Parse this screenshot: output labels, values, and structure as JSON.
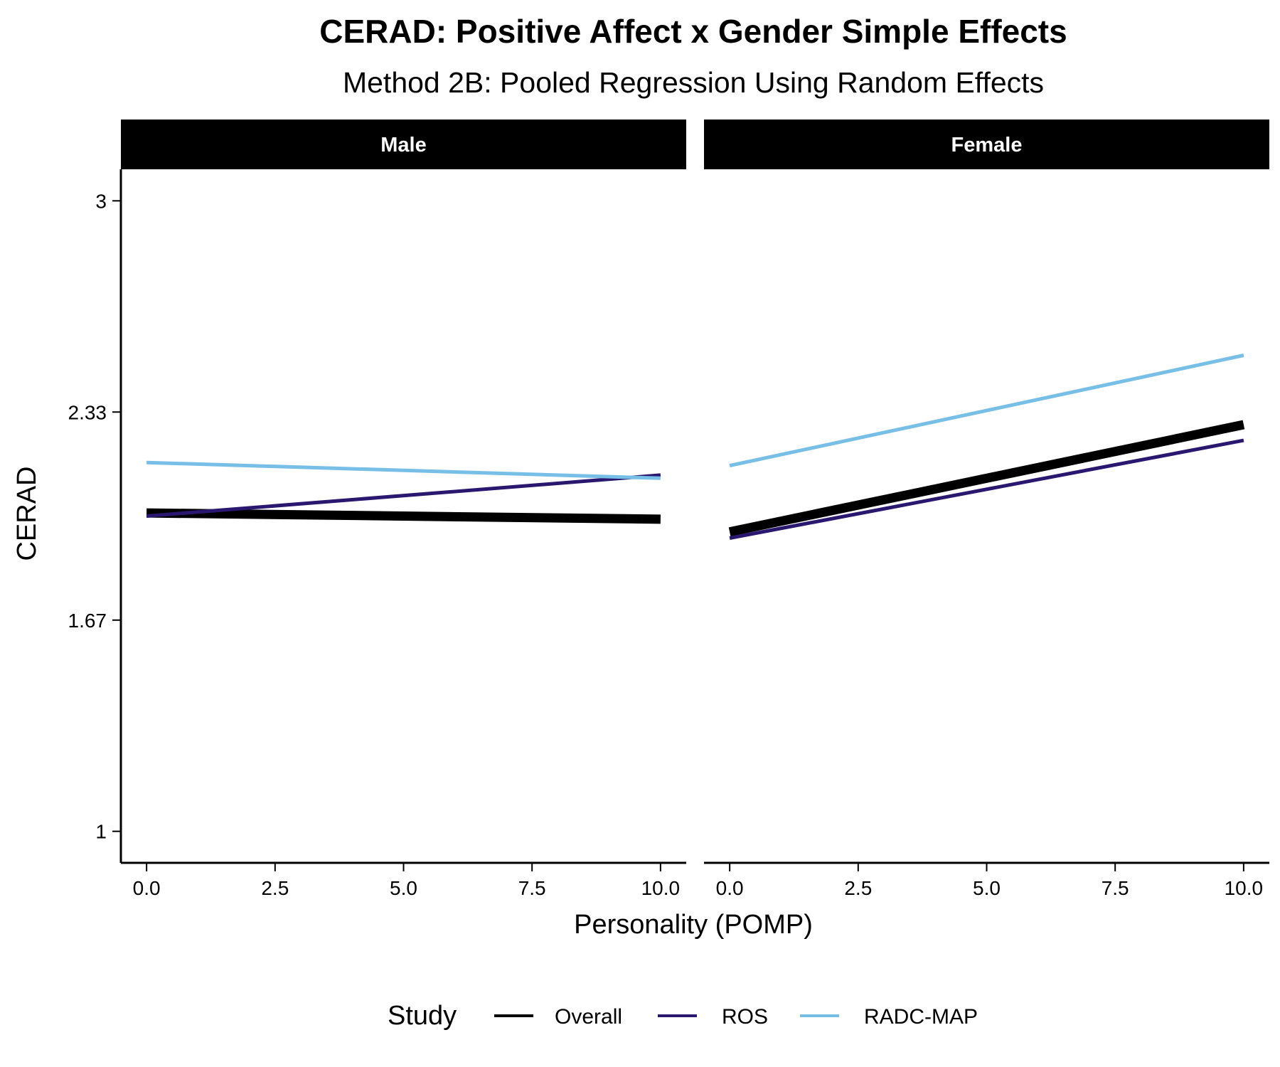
{
  "chart_data": {
    "type": "line",
    "title": "CERAD: Positive Affect x Gender Simple Effects",
    "subtitle": "Method 2B: Pooled Regression Using Random Effects",
    "xlabel": "Personality (POMP)",
    "ylabel": "CERAD",
    "xlim": [
      -0.5,
      10.5
    ],
    "ylim": [
      0.9,
      3.1
    ],
    "x_ticks": [
      0,
      2.5,
      5,
      7.5,
      10
    ],
    "x_tick_labels": [
      "0.0",
      "2.5",
      "5.0",
      "7.5",
      "10.0"
    ],
    "y_ticks": [
      1,
      1.67,
      2.33,
      3
    ],
    "y_tick_labels": [
      "1",
      "1.67",
      "2.33",
      "3"
    ],
    "grid": false,
    "legend": {
      "title": "Study",
      "position": "bottom",
      "entries": [
        {
          "label": "Overall",
          "color": "#000000"
        },
        {
          "label": "ROS",
          "color": "#2a176f"
        },
        {
          "label": "RADC-MAP",
          "color": "#78bfe8"
        }
      ]
    },
    "panels": [
      {
        "name": "Male",
        "series": [
          {
            "name": "Overall",
            "color": "#000000",
            "x": [
              0,
              10
            ],
            "y": [
              2.01,
              1.99
            ]
          },
          {
            "name": "ROS",
            "color": "#2a176f",
            "x": [
              0,
              10
            ],
            "y": [
              2.0,
              2.13
            ]
          },
          {
            "name": "RADC-MAP",
            "color": "#78bfe8",
            "x": [
              0,
              10
            ],
            "y": [
              2.17,
              2.12
            ]
          }
        ]
      },
      {
        "name": "Female",
        "series": [
          {
            "name": "Overall",
            "color": "#000000",
            "x": [
              0,
              10
            ],
            "y": [
              1.95,
              2.29
            ]
          },
          {
            "name": "ROS",
            "color": "#2a176f",
            "x": [
              0,
              10
            ],
            "y": [
              1.93,
              2.24
            ]
          },
          {
            "name": "RADC-MAP",
            "color": "#78bfe8",
            "x": [
              0,
              10
            ],
            "y": [
              2.16,
              2.51
            ]
          }
        ]
      }
    ]
  }
}
